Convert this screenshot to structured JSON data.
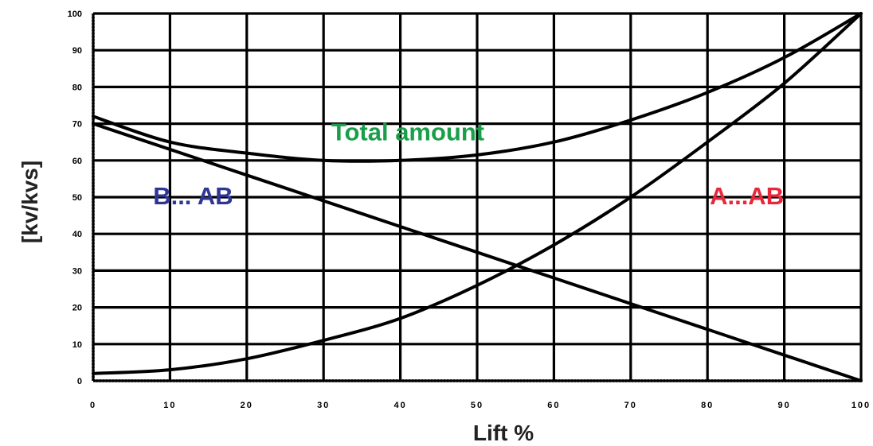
{
  "chart_data": {
    "type": "line",
    "title": "",
    "xlabel": "Lift %",
    "ylabel": "[kv/kvs]",
    "xlim": [
      0,
      100
    ],
    "ylim": [
      0,
      100
    ],
    "x_ticks": [
      "0",
      "10",
      "20",
      "30",
      "40",
      "50",
      "60",
      "70",
      "80",
      "90",
      "100"
    ],
    "y_ticks": [
      "0",
      "10",
      "20",
      "30",
      "40",
      "50",
      "60",
      "70",
      "80",
      "90",
      "100"
    ],
    "grid": true,
    "series": [
      {
        "name": "Total amount",
        "color": "#000000",
        "x": [
          0,
          10,
          20,
          30,
          40,
          50,
          60,
          70,
          80,
          90,
          100
        ],
        "y": [
          72,
          65,
          62,
          60,
          60,
          61.5,
          65,
          71,
          78.5,
          88,
          100
        ]
      },
      {
        "name": "B... AB",
        "color": "#000000",
        "x": [
          0,
          10,
          20,
          30,
          40,
          50,
          60,
          70,
          80,
          90,
          100
        ],
        "y": [
          70,
          63,
          56,
          49,
          42,
          35,
          28,
          21,
          14,
          7,
          0
        ]
      },
      {
        "name": "A...AB",
        "color": "#000000",
        "x": [
          0,
          10,
          20,
          30,
          40,
          50,
          60,
          70,
          80,
          90,
          100
        ],
        "y": [
          2,
          3,
          6,
          11,
          17,
          26,
          37,
          50,
          65,
          81,
          100
        ]
      }
    ],
    "annotations": [
      {
        "text": "Total amount",
        "color": "#1a9e4a",
        "x": 31,
        "y": 65.5
      },
      {
        "text": "B... AB",
        "color": "#2e3596",
        "x": 7.8,
        "y": 48
      },
      {
        "text": "A...AB",
        "color": "#e8283a",
        "x": 80.3,
        "y": 48
      }
    ]
  }
}
